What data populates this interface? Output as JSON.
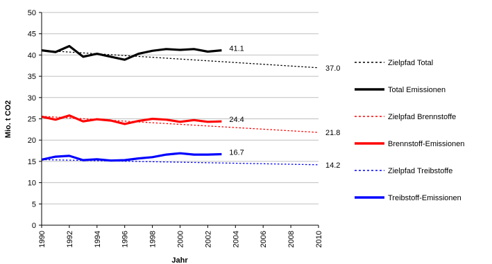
{
  "chart_data": {
    "type": "line",
    "xlabel": "Jahr",
    "ylabel": "Mio. t CO2",
    "xlim": [
      1990,
      2010
    ],
    "ylim": [
      0,
      50
    ],
    "x_ticks": [
      1990,
      1992,
      1994,
      1996,
      1998,
      2000,
      2002,
      2004,
      2006,
      2008,
      2010
    ],
    "y_ticks": [
      0,
      5,
      10,
      15,
      20,
      25,
      30,
      35,
      40,
      45,
      50
    ],
    "grid": "horizontal",
    "legend_position": "right",
    "series": [
      {
        "name": "Zielpfad Total",
        "style": "dotted",
        "color": "#000000",
        "x": [
          1990,
          2010
        ],
        "y": [
          41.1,
          37.0
        ]
      },
      {
        "name": "Total Emissionen",
        "style": "solid",
        "color": "#000000",
        "x": [
          1990,
          1991,
          1992,
          1993,
          1994,
          1995,
          1996,
          1997,
          1998,
          1999,
          2000,
          2001,
          2002,
          2003
        ],
        "y": [
          41.1,
          40.7,
          42.1,
          39.6,
          40.3,
          39.6,
          38.9,
          40.3,
          41.0,
          41.4,
          41.2,
          41.4,
          40.8,
          41.1
        ]
      },
      {
        "name": "Zielpfad Brennstoffe",
        "style": "dotted",
        "color": "#ff0000",
        "x": [
          1990,
          2010
        ],
        "y": [
          25.6,
          21.8
        ]
      },
      {
        "name": "Brennstoff-Emissionen",
        "style": "solid",
        "color": "#ff0000",
        "x": [
          1990,
          1991,
          1992,
          1993,
          1994,
          1995,
          1996,
          1997,
          1998,
          1999,
          2000,
          2001,
          2002,
          2003
        ],
        "y": [
          25.5,
          24.8,
          25.8,
          24.4,
          24.9,
          24.6,
          23.8,
          24.5,
          25.0,
          24.8,
          24.3,
          24.7,
          24.3,
          24.4
        ]
      },
      {
        "name": "Zielpfad Treibstoffe",
        "style": "dotted",
        "color": "#0000ff",
        "x": [
          1990,
          2010
        ],
        "y": [
          15.4,
          14.2
        ]
      },
      {
        "name": "Treibstoff-Emissionen",
        "style": "solid",
        "color": "#0000ff",
        "x": [
          1990,
          1991,
          1992,
          1993,
          1994,
          1995,
          1996,
          1997,
          1998,
          1999,
          2000,
          2001,
          2002,
          2003
        ],
        "y": [
          15.4,
          16.1,
          16.3,
          15.3,
          15.5,
          15.2,
          15.3,
          15.7,
          16.0,
          16.6,
          16.9,
          16.6,
          16.6,
          16.7
        ]
      }
    ],
    "annotations": [
      {
        "text": "41.1",
        "x": 2003,
        "y": 41.1
      },
      {
        "text": "24.4",
        "x": 2003,
        "y": 24.4
      },
      {
        "text": "16.7",
        "x": 2003,
        "y": 16.7
      },
      {
        "text": "37.0",
        "x": 2010,
        "y": 37.0
      },
      {
        "text": "21.8",
        "x": 2010,
        "y": 21.8
      },
      {
        "text": "14.2",
        "x": 2010,
        "y": 14.2
      }
    ]
  }
}
